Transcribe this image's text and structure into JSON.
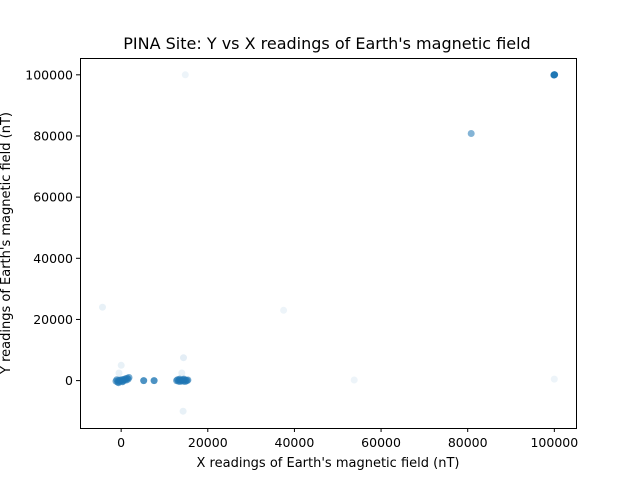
{
  "chart_data": {
    "type": "scatter",
    "title": "PINA Site: Y vs X readings of Earth's magnetic field",
    "xlabel": "X readings of Earth's magnetic field (nT)",
    "ylabel": "Y readings of Earth's magnetic field (nT)",
    "xlim": [
      -9500,
      105000
    ],
    "ylim": [
      -15500,
      105500
    ],
    "xticks": [
      0,
      20000,
      40000,
      60000,
      80000,
      100000
    ],
    "yticks": [
      0,
      20000,
      40000,
      60000,
      80000,
      100000
    ],
    "xtick_labels": [
      "0",
      "20000",
      "40000",
      "60000",
      "80000",
      "100000"
    ],
    "ytick_labels": [
      "0",
      "20000",
      "40000",
      "60000",
      "80000",
      "100000"
    ],
    "grid": false,
    "marker_color": "#1f77b4",
    "points": [
      {
        "x": 100000,
        "y": 100000,
        "a": 0.9
      },
      {
        "x": 99900,
        "y": 99950,
        "a": 0.9
      },
      {
        "x": 100050,
        "y": 100050,
        "a": 0.9
      },
      {
        "x": 80800,
        "y": 80800,
        "a": 0.55
      },
      {
        "x": 14800,
        "y": 100000,
        "a": 0.08
      },
      {
        "x": 37500,
        "y": 23000,
        "a": 0.08
      },
      {
        "x": -4300,
        "y": 24000,
        "a": 0.1
      },
      {
        "x": 53800,
        "y": 200,
        "a": 0.08
      },
      {
        "x": 100000,
        "y": 500,
        "a": 0.08
      },
      {
        "x": 14400,
        "y": 7500,
        "a": 0.12
      },
      {
        "x": 14300,
        "y": -10000,
        "a": 0.1
      },
      {
        "x": 0,
        "y": 5000,
        "a": 0.1
      },
      {
        "x": -500,
        "y": 2500,
        "a": 0.1
      },
      {
        "x": 14000,
        "y": 2500,
        "a": 0.1
      },
      {
        "x": 5200,
        "y": 0,
        "a": 0.8
      },
      {
        "x": 7600,
        "y": 0,
        "a": 0.8
      },
      {
        "x": -1200,
        "y": -200,
        "a": 0.6
      },
      {
        "x": -1000,
        "y": 300,
        "a": 0.6
      },
      {
        "x": -800,
        "y": -500,
        "a": 0.6
      },
      {
        "x": -600,
        "y": 100,
        "a": 0.6
      },
      {
        "x": -400,
        "y": -300,
        "a": 0.6
      },
      {
        "x": -200,
        "y": 200,
        "a": 0.6
      },
      {
        "x": 0,
        "y": -100,
        "a": 0.6
      },
      {
        "x": 200,
        "y": 300,
        "a": 0.6
      },
      {
        "x": 400,
        "y": -200,
        "a": 0.6
      },
      {
        "x": 600,
        "y": 400,
        "a": 0.6
      },
      {
        "x": 800,
        "y": 100,
        "a": 0.6
      },
      {
        "x": 1000,
        "y": 600,
        "a": 0.6
      },
      {
        "x": 1200,
        "y": 200,
        "a": 0.6
      },
      {
        "x": 1400,
        "y": 800,
        "a": 0.6
      },
      {
        "x": 1600,
        "y": 500,
        "a": 0.6
      },
      {
        "x": 1800,
        "y": 1000,
        "a": 0.6
      },
      {
        "x": -600,
        "y": -700,
        "a": 0.6
      },
      {
        "x": 300,
        "y": -400,
        "a": 0.6
      },
      {
        "x": 12800,
        "y": 0,
        "a": 0.6
      },
      {
        "x": 13000,
        "y": 300,
        "a": 0.6
      },
      {
        "x": 13200,
        "y": -200,
        "a": 0.6
      },
      {
        "x": 13400,
        "y": 200,
        "a": 0.6
      },
      {
        "x": 13600,
        "y": -300,
        "a": 0.6
      },
      {
        "x": 13800,
        "y": 100,
        "a": 0.6
      },
      {
        "x": 14000,
        "y": -100,
        "a": 0.6
      },
      {
        "x": 14200,
        "y": 300,
        "a": 0.6
      },
      {
        "x": 14400,
        "y": -200,
        "a": 0.6
      },
      {
        "x": 14600,
        "y": 200,
        "a": 0.6
      },
      {
        "x": 14800,
        "y": -300,
        "a": 0.6
      },
      {
        "x": 15000,
        "y": 100,
        "a": 0.6
      },
      {
        "x": 15200,
        "y": 0,
        "a": 0.6
      },
      {
        "x": 15400,
        "y": 200,
        "a": 0.6
      },
      {
        "x": 13500,
        "y": 500,
        "a": 0.6
      },
      {
        "x": 14500,
        "y": 500,
        "a": 0.6
      }
    ]
  }
}
